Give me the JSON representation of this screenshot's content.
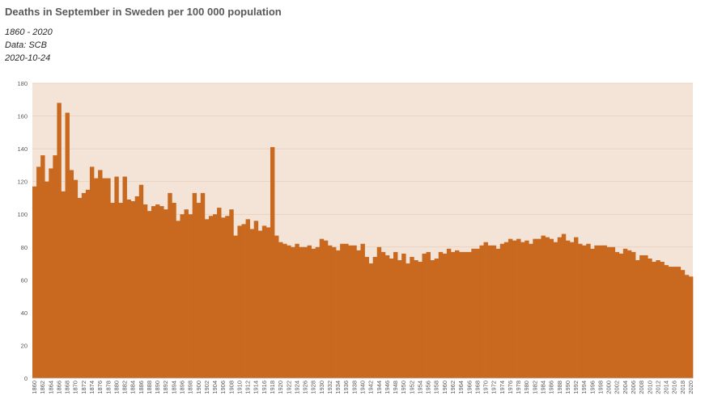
{
  "chart_data": {
    "type": "bar",
    "title": "Deaths in September in Sweden per 100 000 population",
    "subtitle_lines": [
      "1860 - 2020",
      "Data: SCB",
      "2020-10-24"
    ],
    "xlabel": "",
    "ylabel": "",
    "ylim": [
      0,
      180
    ],
    "yticks": [
      0,
      20,
      40,
      60,
      80,
      100,
      120,
      140,
      160,
      180
    ],
    "grid": true,
    "legend": "none",
    "bar_color": "#c8691f",
    "plot_background": "#f4e4d8",
    "x_start": 1860,
    "x_end": 2020,
    "x_tick_step": 2,
    "values": [
      117,
      129,
      136,
      120,
      128,
      136,
      168,
      114,
      162,
      127,
      121,
      110,
      113,
      115,
      129,
      122,
      127,
      122,
      122,
      107,
      123,
      107,
      123,
      109,
      108,
      111,
      118,
      106,
      102,
      105,
      106,
      105,
      103,
      113,
      107,
      96,
      100,
      103,
      100,
      113,
      107,
      113,
      97,
      99,
      100,
      104,
      98,
      99,
      103,
      87,
      93,
      94,
      97,
      91,
      96,
      90,
      93,
      92,
      141,
      87,
      83,
      82,
      81,
      80,
      82,
      80,
      80,
      81,
      79,
      80,
      85,
      84,
      81,
      80,
      78,
      82,
      82,
      81,
      81,
      78,
      82,
      74,
      70,
      74,
      80,
      77,
      75,
      73,
      77,
      72,
      76,
      70,
      74,
      72,
      71,
      76,
      77,
      72,
      73,
      77,
      76,
      79,
      77,
      78,
      77,
      77,
      77,
      79,
      79,
      81,
      83,
      81,
      81,
      79,
      82,
      83,
      85,
      84,
      85,
      83,
      84,
      82,
      85,
      85,
      87,
      86,
      85,
      83,
      86,
      88,
      84,
      83,
      86,
      82,
      81,
      82,
      79,
      81,
      81,
      81,
      80,
      80,
      77,
      76,
      79,
      78,
      77,
      72,
      75,
      75,
      73,
      71,
      72,
      71,
      69,
      68,
      68,
      68,
      66,
      63,
      62
    ]
  }
}
